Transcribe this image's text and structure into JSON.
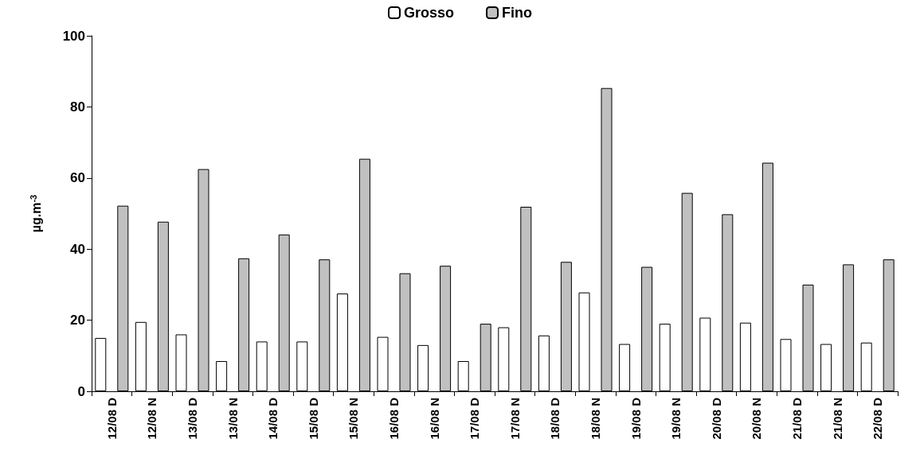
{
  "chart_data": {
    "type": "bar",
    "ylabel": "µg.m$^{-3}$",
    "categories": [
      "12/08 D",
      "12/08 N",
      "13/08 D",
      "13/08 N",
      "14/08 D",
      "15/08 D",
      "15/08 N",
      "16/08 D",
      "16/08 N",
      "17/08 D",
      "17/08 N",
      "18/08 D",
      "18/08 N",
      "19/08 D",
      "19/08 N",
      "20/08 D",
      "20/08 N",
      "21/08 D",
      "21/08 N",
      "22/08 D"
    ],
    "series": [
      {
        "name": "Grosso",
        "color": "#ffffff",
        "values": [
          15,
          19.5,
          16,
          8.5,
          14,
          14,
          27.5,
          15.3,
          13,
          8.5,
          18,
          15.7,
          27.8,
          13.3,
          19,
          20.7,
          19.3,
          14.7,
          13.3,
          13.7
        ]
      },
      {
        "name": "Fino",
        "color": "#c0c0c0",
        "values": [
          52.2,
          47.7,
          62.5,
          37.4,
          44.1,
          37.1,
          65.4,
          33.2,
          35.3,
          19,
          51.9,
          36.4,
          85.3,
          35,
          55.8,
          49.8,
          64.3,
          30,
          35.7,
          37.1
        ]
      }
    ],
    "ylim": [
      0,
      100
    ],
    "yticks": [
      0,
      20,
      40,
      60,
      80,
      100
    ],
    "grid": false,
    "legend": "top"
  }
}
